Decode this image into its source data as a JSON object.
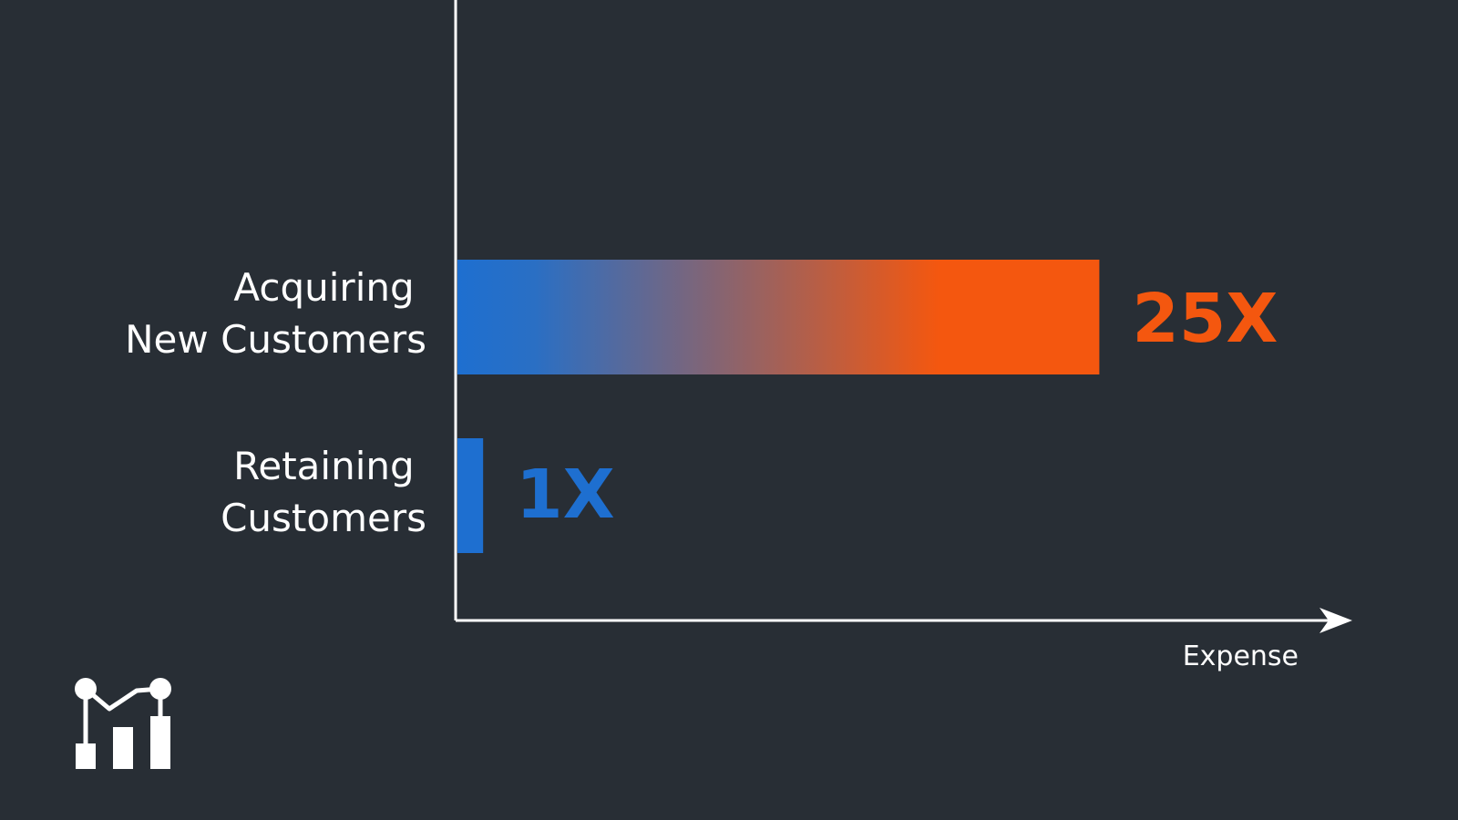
{
  "chart_data": {
    "type": "bar",
    "orientation": "horizontal",
    "categories": [
      "Acquiring New Customers",
      "Retaining Customers"
    ],
    "category_lines": [
      [
        "Acquiring",
        "New Customers"
      ],
      [
        "Retaining",
        "Customers"
      ]
    ],
    "values": [
      25,
      1
    ],
    "value_labels": [
      "25X",
      "1X"
    ],
    "xlabel": "Expense",
    "ylabel": "",
    "title": "",
    "xlim": [
      0,
      34
    ],
    "grid": false,
    "legend": "none"
  },
  "colors": {
    "background": "#282e35",
    "axis": "#ffffff",
    "bar_start": "#1e6fd0",
    "bar_end": "#f4570f",
    "label_25x": "#f4570f",
    "label_1x": "#1e6fd0"
  },
  "logo": {
    "icon": "line-bar-chart-icon"
  }
}
